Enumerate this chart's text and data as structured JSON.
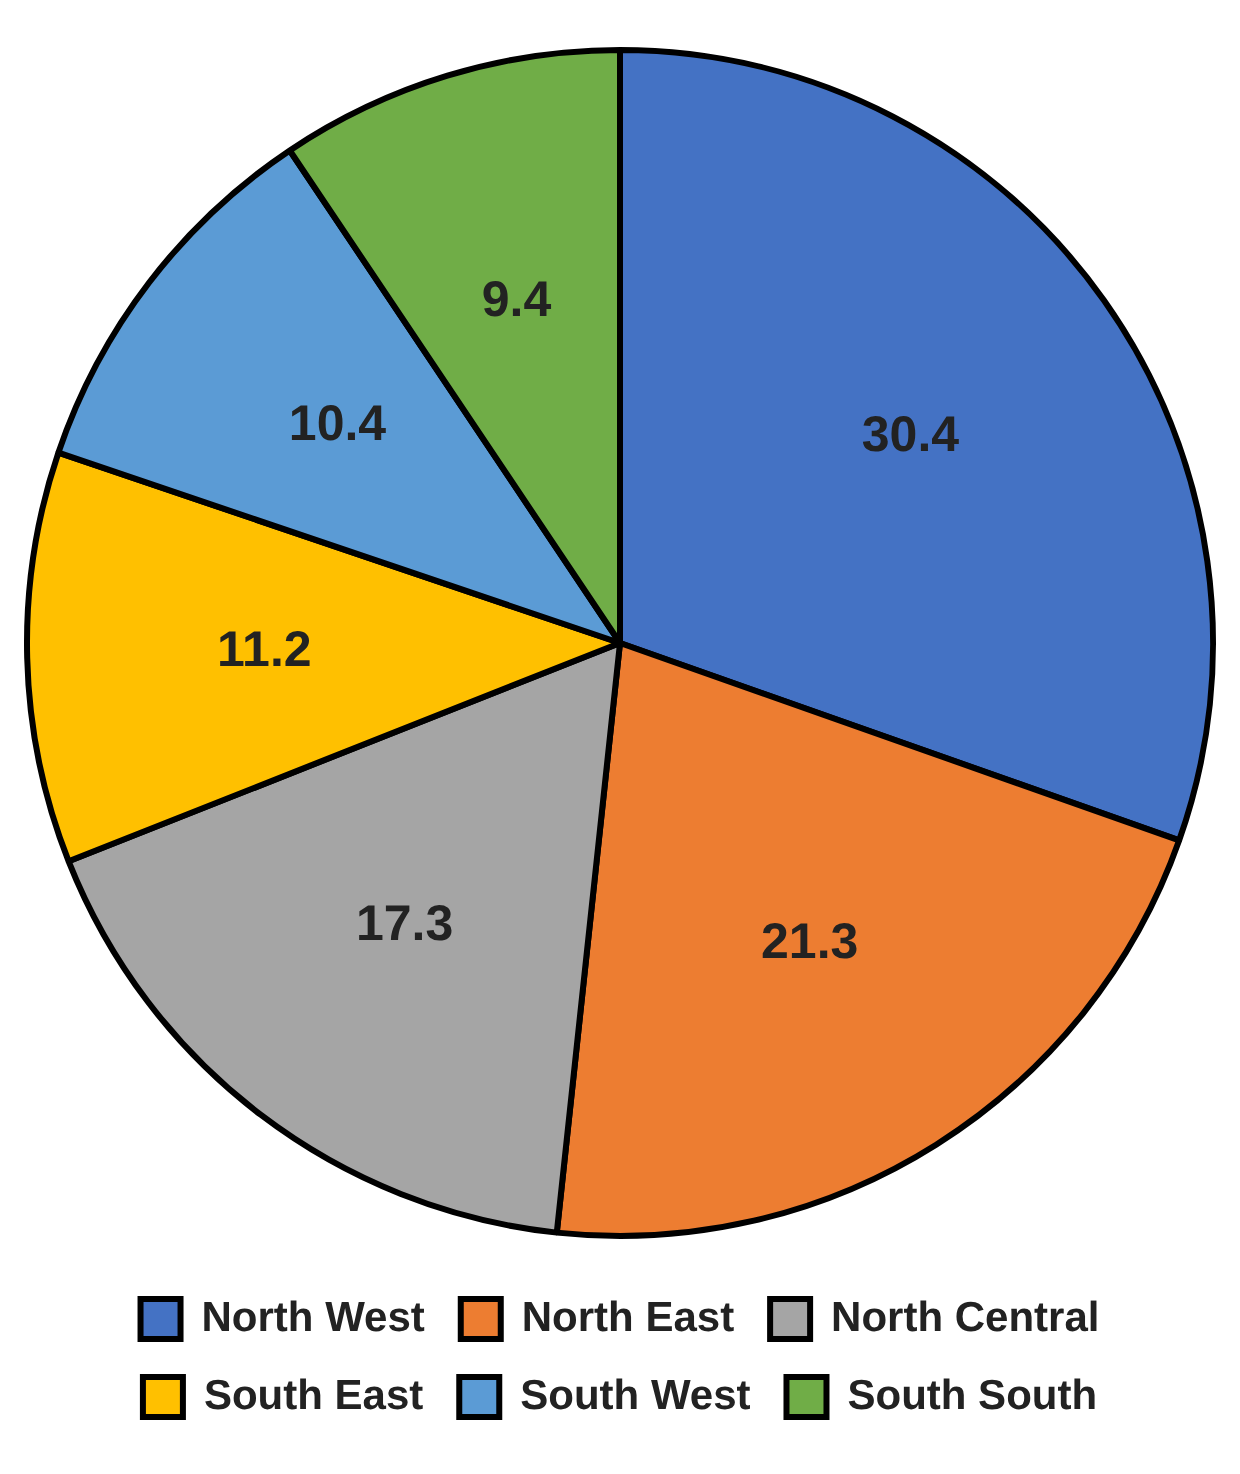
{
  "chart_data": {
    "type": "pie",
    "categories": [
      "North West",
      "North East",
      "North Central",
      "South East",
      "South West",
      "South South"
    ],
    "values": [
      30.4,
      21.3,
      17.3,
      11.2,
      10.4,
      9.4
    ],
    "colors": [
      "#4472c4",
      "#ed7d31",
      "#a5a5a5",
      "#ffc000",
      "#5b9bd5",
      "#70ad47"
    ],
    "data_labels": true,
    "legend": "bottom"
  }
}
